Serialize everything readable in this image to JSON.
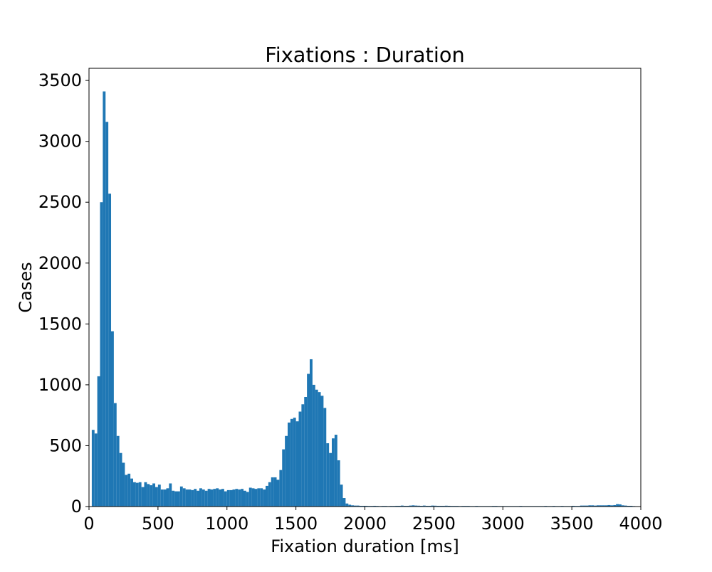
{
  "chart_data": {
    "type": "bar",
    "title": "Fixations : Duration",
    "xlabel": "Fixation duration [ms]",
    "ylabel": "Cases",
    "xlim": [
      0,
      4000
    ],
    "ylim": [
      0,
      3600
    ],
    "xticks": [
      0,
      500,
      1000,
      1500,
      2000,
      2500,
      3000,
      3500,
      4000
    ],
    "yticks": [
      0,
      500,
      1000,
      1500,
      2000,
      2500,
      3000,
      3500
    ],
    "grid": false,
    "legend": "none",
    "bar_color": "#1f77b4",
    "bin_width": 20,
    "x": [
      20,
      40,
      60,
      80,
      100,
      120,
      140,
      160,
      180,
      200,
      220,
      240,
      260,
      280,
      300,
      320,
      340,
      360,
      380,
      400,
      420,
      440,
      460,
      480,
      500,
      520,
      540,
      560,
      580,
      600,
      620,
      640,
      660,
      680,
      700,
      720,
      740,
      760,
      780,
      800,
      820,
      840,
      860,
      880,
      900,
      920,
      940,
      960,
      980,
      1000,
      1020,
      1040,
      1060,
      1080,
      1100,
      1120,
      1140,
      1160,
      1180,
      1200,
      1220,
      1240,
      1260,
      1280,
      1300,
      1320,
      1340,
      1360,
      1380,
      1400,
      1420,
      1440,
      1460,
      1480,
      1500,
      1520,
      1540,
      1560,
      1580,
      1600,
      1620,
      1640,
      1660,
      1680,
      1700,
      1720,
      1740,
      1760,
      1780,
      1800,
      1820,
      1840,
      1860,
      1880,
      1900,
      1920,
      1940,
      1960,
      1980,
      2000,
      2020,
      2040,
      2060,
      2080,
      2100,
      2120,
      2140,
      2160,
      2180,
      2200,
      2220,
      2240,
      2260,
      2280,
      2300,
      2320,
      2340,
      2360,
      2380,
      2400,
      2420,
      2440,
      2460,
      2480,
      2500,
      2520,
      2540,
      2560,
      2580,
      2600,
      2620,
      2640,
      2660,
      2680,
      2700,
      2720,
      2740,
      2760,
      2780,
      2800,
      2820,
      2840,
      2860,
      2880,
      2900,
      2920,
      2940,
      2960,
      2980,
      3000,
      3020,
      3040,
      3060,
      3080,
      3100,
      3120,
      3140,
      3160,
      3180,
      3200,
      3220,
      3240,
      3260,
      3280,
      3300,
      3320,
      3340,
      3360,
      3380,
      3400,
      3420,
      3440,
      3460,
      3480,
      3500,
      3520,
      3540,
      3560,
      3580,
      3600,
      3620,
      3640,
      3660,
      3680,
      3700,
      3720,
      3740,
      3760,
      3780,
      3800,
      3820,
      3840,
      3860,
      3880,
      3900,
      3920,
      3940,
      3960,
      3980
    ],
    "values": [
      630,
      600,
      1070,
      2500,
      3410,
      3160,
      2570,
      1440,
      850,
      580,
      440,
      360,
      260,
      270,
      230,
      200,
      195,
      200,
      160,
      200,
      185,
      175,
      190,
      160,
      180,
      140,
      140,
      150,
      190,
      130,
      125,
      125,
      165,
      150,
      140,
      140,
      135,
      145,
      130,
      150,
      140,
      130,
      145,
      140,
      145,
      150,
      140,
      145,
      125,
      135,
      135,
      140,
      145,
      140,
      145,
      130,
      120,
      155,
      150,
      145,
      150,
      150,
      140,
      170,
      200,
      240,
      240,
      220,
      300,
      470,
      580,
      690,
      720,
      730,
      700,
      780,
      840,
      900,
      1090,
      1210,
      1000,
      960,
      940,
      910,
      810,
      520,
      440,
      560,
      590,
      380,
      180,
      70,
      25,
      15,
      10,
      8,
      8,
      6,
      6,
      6,
      5,
      5,
      6,
      5,
      4,
      5,
      5,
      4,
      5,
      5,
      6,
      6,
      8,
      6,
      6,
      8,
      10,
      8,
      7,
      6,
      8,
      6,
      6,
      8,
      7,
      6,
      6,
      6,
      7,
      6,
      5,
      5,
      5,
      4,
      5,
      5,
      5,
      4,
      4,
      5,
      4,
      4,
      4,
      4,
      4,
      5,
      5,
      4,
      4,
      4,
      4,
      4,
      4,
      4,
      4,
      5,
      4,
      4,
      4,
      4,
      4,
      4,
      4,
      4,
      5,
      4,
      4,
      5,
      4,
      4,
      5,
      4,
      4,
      4,
      6,
      5,
      5,
      8,
      8,
      8,
      10,
      10,
      8,
      10,
      10,
      10,
      10,
      12,
      10,
      12,
      20,
      18,
      10,
      8,
      6,
      6,
      4,
      3,
      2
    ]
  }
}
